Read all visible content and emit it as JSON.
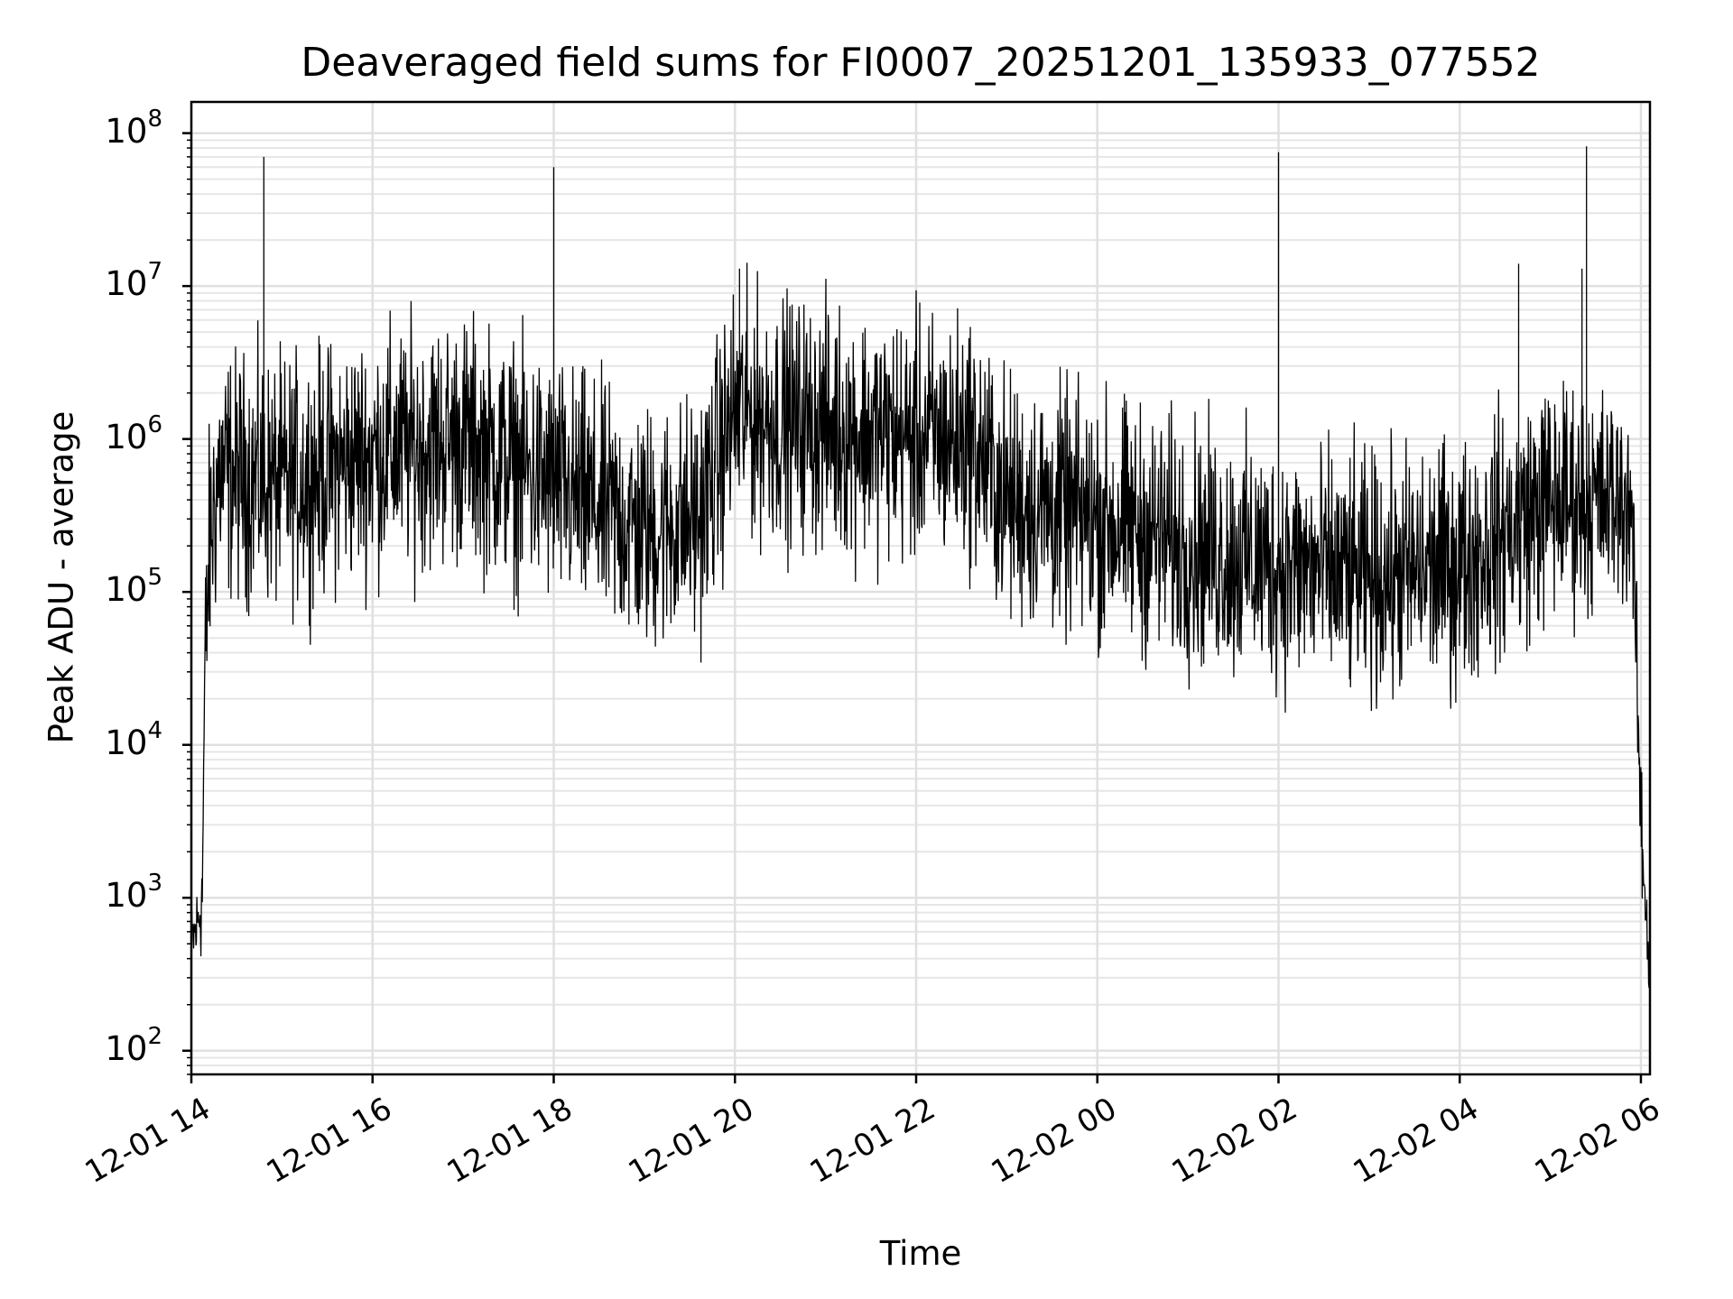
{
  "chart_data": {
    "type": "line",
    "title": "Deaveraged field sums for FI0007_20251201_135933_077552",
    "xlabel": "Time",
    "ylabel": "Peak ADU - average",
    "yscale": "log",
    "ylim": [
      70,
      160000000
    ],
    "xlim_hours": [
      0,
      16.1
    ],
    "grid": true,
    "x_tick_labels": [
      "12-01 14",
      "12-01 16",
      "12-01 18",
      "12-01 20",
      "12-01 22",
      "12-02 00",
      "12-02 02",
      "12-02 04",
      "12-02 06"
    ],
    "x_tick_hours": [
      0,
      2,
      4,
      6,
      8,
      10,
      12,
      14,
      16
    ],
    "y_ticks": [
      {
        "base": "10",
        "exp": "2",
        "value": 100
      },
      {
        "base": "10",
        "exp": "3",
        "value": 1000
      },
      {
        "base": "10",
        "exp": "4",
        "value": 10000
      },
      {
        "base": "10",
        "exp": "5",
        "value": 100000
      },
      {
        "base": "10",
        "exp": "6",
        "value": 1000000
      },
      {
        "base": "10",
        "exp": "7",
        "value": 10000000
      },
      {
        "base": "10",
        "exp": "8",
        "value": 100000000
      }
    ],
    "series": [
      {
        "name": "Peak ADU - average",
        "color": "#000000",
        "baseline_envelope": {
          "hours": [
            0.0,
            0.05,
            0.12,
            0.15,
            0.2,
            0.3,
            1.0,
            2.0,
            3.0,
            4.0,
            5.0,
            5.6,
            6.0,
            7.0,
            8.0,
            8.6,
            9.0,
            10.0,
            11.0,
            12.0,
            13.0,
            14.0,
            15.0,
            15.9,
            16.0,
            16.1
          ],
          "median": [
            500,
            600,
            1000,
            30000,
            200000,
            600000,
            500000,
            800000,
            1000000,
            500000,
            250000,
            300000,
            1500000,
            1200000,
            1000000,
            1000000,
            400000,
            300000,
            200000,
            150000,
            120000,
            150000,
            400000,
            400000,
            3000,
            300
          ],
          "spread_decades": [
            0.2,
            0.2,
            0.3,
            0.5,
            0.6,
            0.6,
            0.6,
            0.6,
            0.6,
            0.6,
            0.6,
            0.6,
            0.6,
            0.6,
            0.6,
            0.6,
            0.6,
            0.6,
            0.6,
            0.6,
            0.6,
            0.6,
            0.6,
            0.5,
            0.3,
            0.2
          ]
        },
        "spikes": [
          {
            "hour": 0.8,
            "value": 70000000
          },
          {
            "hour": 4.0,
            "value": 60000000
          },
          {
            "hour": 6.05,
            "value": 13000000
          },
          {
            "hour": 12.0,
            "value": 75000000
          },
          {
            "hour": 14.65,
            "value": 14000000
          },
          {
            "hour": 15.35,
            "value": 13000000
          },
          {
            "hour": 15.4,
            "value": 82000000
          }
        ]
      }
    ]
  }
}
